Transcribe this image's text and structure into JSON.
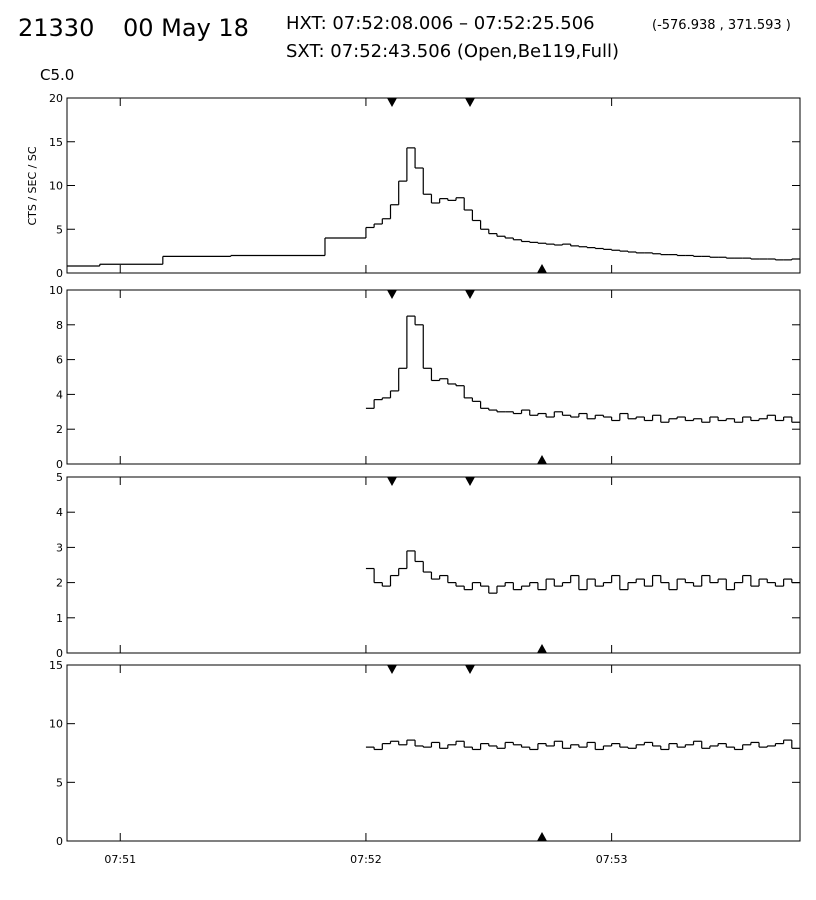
{
  "header": {
    "orbit": "21330",
    "date": "00 May 18",
    "hxt": "HXT: 07:52:08.006 – 07:52:25.506",
    "coords": "(-576.938 , 371.593 )",
    "sxt": "SXT: 07:52:43.506 (Open,Be119,Full)",
    "goes": "C5.0"
  },
  "chart_data": [
    {
      "type": "line",
      "step": true,
      "y_label": "CTS / SEC / SC",
      "color": "#000000",
      "x": [
        47,
        55,
        70.4,
        87,
        110,
        120,
        122,
        124,
        126,
        128,
        130,
        132,
        134,
        136,
        138,
        140,
        142,
        144,
        146,
        148,
        150,
        152,
        154,
        156,
        158,
        160,
        162,
        164,
        166,
        168,
        170,
        172,
        174,
        176,
        178,
        180,
        182,
        184,
        186,
        188,
        190,
        192,
        194,
        196,
        198,
        200,
        202,
        204,
        206,
        208,
        210,
        212,
        214,
        216,
        218,
        220,
        222,
        224
      ],
      "values": [
        0.8,
        1.0,
        1.9,
        2.0,
        4.0,
        5.2,
        5.6,
        6.2,
        7.8,
        10.5,
        14.3,
        12.0,
        9.0,
        8.0,
        8.5,
        8.3,
        8.6,
        7.2,
        6.0,
        5.0,
        4.5,
        4.2,
        4.0,
        3.8,
        3.6,
        3.5,
        3.4,
        3.3,
        3.2,
        3.3,
        3.1,
        3.0,
        2.9,
        2.8,
        2.7,
        2.6,
        2.5,
        2.4,
        2.3,
        2.3,
        2.2,
        2.1,
        2.1,
        2.0,
        2.0,
        1.9,
        1.9,
        1.8,
        1.8,
        1.7,
        1.7,
        1.7,
        1.6,
        1.6,
        1.6,
        1.5,
        1.5,
        1.6
      ],
      "xlim": [
        47,
        226
      ],
      "ylim": [
        0,
        20
      ],
      "yticks": [
        0,
        5,
        10,
        15,
        20
      ]
    },
    {
      "type": "line",
      "step": true,
      "color": "#000000",
      "x": [
        120,
        122,
        124,
        126,
        128,
        130,
        132,
        134,
        136,
        138,
        140,
        142,
        144,
        146,
        148,
        150,
        152,
        154,
        156,
        158,
        160,
        162,
        164,
        166,
        168,
        170,
        172,
        174,
        176,
        178,
        180,
        182,
        184,
        186,
        188,
        190,
        192,
        194,
        196,
        198,
        200,
        202,
        204,
        206,
        208,
        210,
        212,
        214,
        216,
        218,
        220,
        222,
        224
      ],
      "values": [
        3.2,
        3.7,
        3.8,
        4.2,
        5.5,
        8.5,
        8.0,
        5.5,
        4.8,
        4.9,
        4.6,
        4.5,
        3.8,
        3.6,
        3.2,
        3.1,
        3.0,
        3.0,
        2.9,
        3.1,
        2.8,
        2.9,
        2.7,
        3.0,
        2.8,
        2.7,
        2.9,
        2.6,
        2.8,
        2.7,
        2.5,
        2.9,
        2.6,
        2.7,
        2.5,
        2.8,
        2.4,
        2.6,
        2.7,
        2.5,
        2.6,
        2.4,
        2.7,
        2.5,
        2.6,
        2.4,
        2.7,
        2.5,
        2.6,
        2.8,
        2.5,
        2.7,
        2.4
      ],
      "xlim": [
        47,
        226
      ],
      "ylim": [
        0,
        10
      ],
      "yticks": [
        0,
        2,
        4,
        6,
        8,
        10
      ]
    },
    {
      "type": "line",
      "step": true,
      "color": "#000000",
      "x": [
        120,
        122,
        124,
        126,
        128,
        130,
        132,
        134,
        136,
        138,
        140,
        142,
        144,
        146,
        148,
        150,
        152,
        154,
        156,
        158,
        160,
        162,
        164,
        166,
        168,
        170,
        172,
        174,
        176,
        178,
        180,
        182,
        184,
        186,
        188,
        190,
        192,
        194,
        196,
        198,
        200,
        202,
        204,
        206,
        208,
        210,
        212,
        214,
        216,
        218,
        220,
        222,
        224
      ],
      "values": [
        2.4,
        2.0,
        1.9,
        2.2,
        2.4,
        2.9,
        2.6,
        2.3,
        2.1,
        2.2,
        2.0,
        1.9,
        1.8,
        2.0,
        1.9,
        1.7,
        1.9,
        2.0,
        1.8,
        1.9,
        2.0,
        1.8,
        2.1,
        1.9,
        2.0,
        2.2,
        1.8,
        2.1,
        1.9,
        2.0,
        2.2,
        1.8,
        2.0,
        2.1,
        1.9,
        2.2,
        2.0,
        1.8,
        2.1,
        2.0,
        1.9,
        2.2,
        2.0,
        2.1,
        1.8,
        2.0,
        2.2,
        1.9,
        2.1,
        2.0,
        1.9,
        2.1,
        2.0
      ],
      "xlim": [
        47,
        226
      ],
      "ylim": [
        0,
        5
      ],
      "yticks": [
        0,
        1,
        2,
        3,
        4,
        5
      ]
    },
    {
      "type": "line",
      "step": true,
      "color": "#000000",
      "x": [
        120,
        122,
        124,
        126,
        128,
        130,
        132,
        134,
        136,
        138,
        140,
        142,
        144,
        146,
        148,
        150,
        152,
        154,
        156,
        158,
        160,
        162,
        164,
        166,
        168,
        170,
        172,
        174,
        176,
        178,
        180,
        182,
        184,
        186,
        188,
        190,
        192,
        194,
        196,
        198,
        200,
        202,
        204,
        206,
        208,
        210,
        212,
        214,
        216,
        218,
        220,
        222,
        224
      ],
      "values": [
        8.0,
        7.8,
        8.3,
        8.5,
        8.2,
        8.6,
        8.1,
        8.0,
        8.4,
        7.9,
        8.2,
        8.5,
        8.0,
        7.8,
        8.3,
        8.1,
        7.9,
        8.4,
        8.2,
        8.0,
        7.8,
        8.3,
        8.1,
        8.5,
        7.9,
        8.2,
        8.0,
        8.4,
        7.8,
        8.1,
        8.3,
        8.0,
        7.9,
        8.2,
        8.4,
        8.1,
        7.8,
        8.3,
        8.0,
        8.2,
        8.5,
        7.9,
        8.1,
        8.3,
        8.0,
        7.8,
        8.2,
        8.4,
        8.0,
        8.1,
        8.3,
        8.6,
        7.9
      ],
      "xlim": [
        47,
        226
      ],
      "ylim": [
        0,
        15
      ],
      "yticks": [
        0,
        5,
        10,
        15
      ],
      "xticks": [
        {
          "value": 60,
          "label": "07:51"
        },
        {
          "value": 120,
          "label": "07:52"
        },
        {
          "value": 180,
          "label": "07:53"
        }
      ]
    }
  ]
}
